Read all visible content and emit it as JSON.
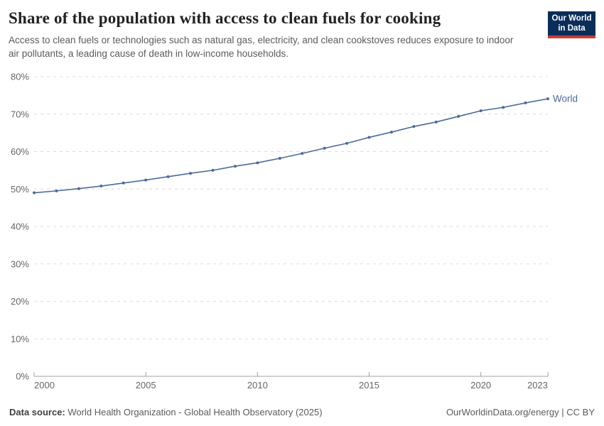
{
  "header": {
    "title": "Share of the population with access to clean fuels for cooking",
    "subtitle": "Access to clean fuels or technologies such as natural gas, electricity, and clean cookstoves reduces exposure to indoor air pollutants, a leading cause of death in low-income households.",
    "logo": {
      "line1": "Our World",
      "line2": "in Data"
    }
  },
  "chart_data": {
    "type": "line",
    "title": "Share of the population with access to clean fuels for cooking",
    "x": [
      2000,
      2001,
      2002,
      2003,
      2004,
      2005,
      2006,
      2007,
      2008,
      2009,
      2010,
      2011,
      2012,
      2013,
      2014,
      2015,
      2016,
      2017,
      2018,
      2019,
      2020,
      2021,
      2022,
      2023
    ],
    "series": [
      {
        "name": "World",
        "values": [
          49.0,
          49.5,
          50.1,
          50.8,
          51.6,
          52.4,
          53.3,
          54.2,
          55.0,
          56.1,
          57.0,
          58.2,
          59.5,
          60.9,
          62.2,
          63.8,
          65.2,
          66.7,
          67.9,
          69.4,
          70.9,
          71.8,
          73.0,
          74.1
        ]
      }
    ],
    "xlabel": "",
    "ylabel": "",
    "ylim": [
      0,
      80
    ],
    "xlim": [
      2000,
      2023
    ],
    "yticks": [
      0,
      10,
      20,
      30,
      40,
      50,
      60,
      70,
      80
    ],
    "ytick_suffix": "%",
    "xticks": [
      2000,
      2005,
      2010,
      2015,
      2020,
      2023
    ],
    "grid": "horizontal-dashed",
    "legend_position": "end-of-line-label",
    "marker": "point"
  },
  "footer": {
    "data_source_label": "Data source:",
    "data_source": "World Health Organization - Global Health Observatory (2025)",
    "license": "OurWorldinData.org/energy | CC BY"
  },
  "colors": {
    "line": "#4c6a9c",
    "grid": "#dcdcdc",
    "axis": "#a0a0a0",
    "tick_label": "#666666",
    "title": "#222222",
    "subtitle": "#5b5b5b",
    "footer": "#5b5b5b",
    "logo_bg": "#0a2d5a",
    "logo_red": "#cc3b33"
  }
}
